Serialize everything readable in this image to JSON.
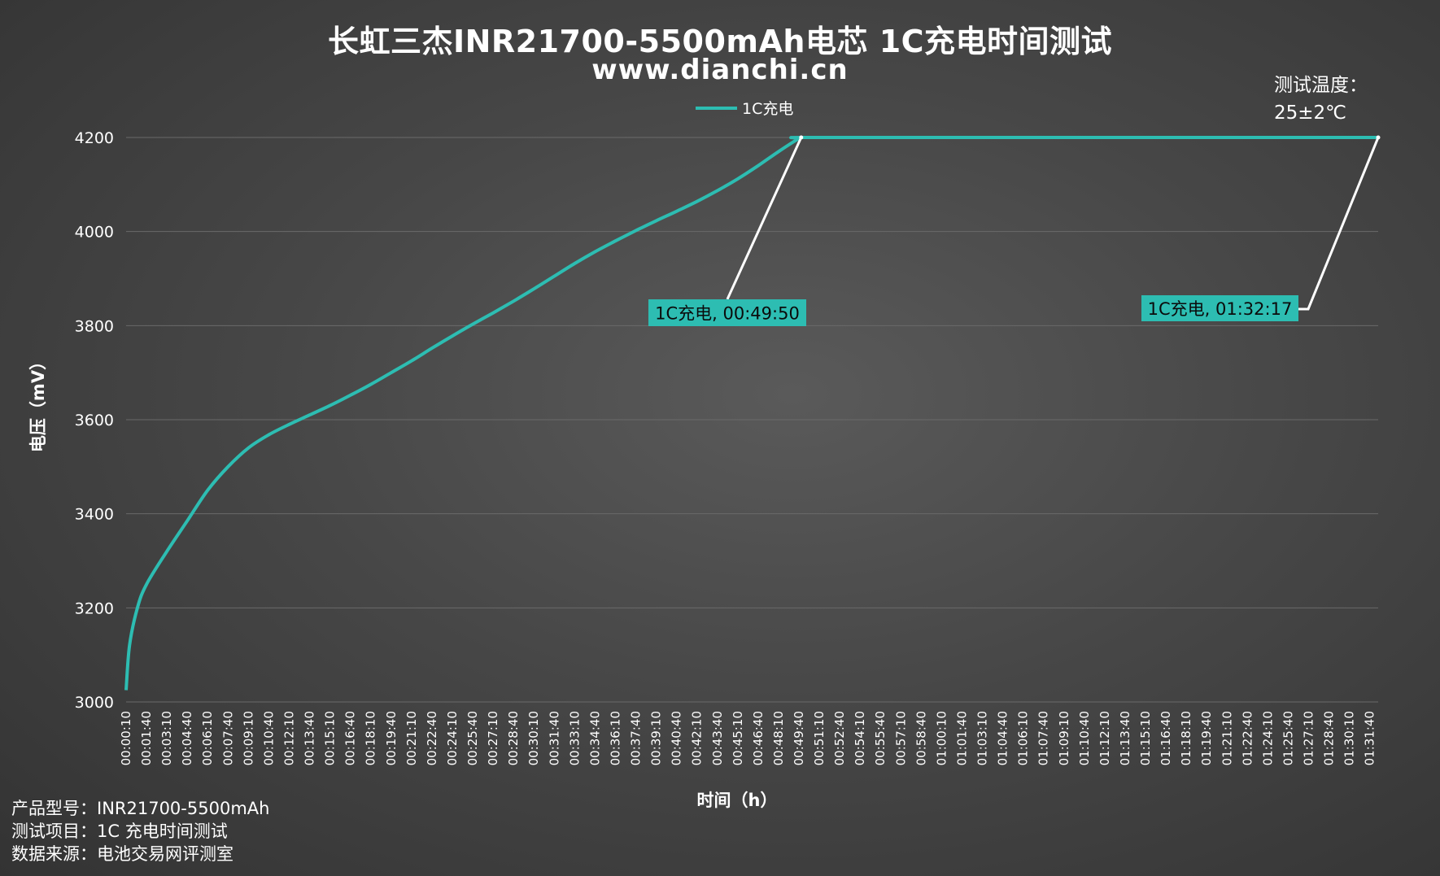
{
  "header": {
    "title": "长虹三杰INR21700-5500mAh电芯 1C充电时间测试",
    "subtitle": "www.dianchi.cn"
  },
  "note": {
    "line1": "测试温度：",
    "line2": "25±2℃"
  },
  "footer": {
    "line1": "产品型号：INR21700-5500mAh",
    "line2": "测试项目：1C 充电时间测试",
    "line3": "数据来源：电池交易网评测室"
  },
  "colors": {
    "series": "#2dbdb2",
    "grid": "#6a6a6a",
    "leader": "#ffffff"
  },
  "chart_data": {
    "type": "line",
    "title": "长虹三杰INR21700-5500mAh电芯 1C充电时间测试",
    "xlabel": "时间（h）",
    "ylabel": "电压（mV）",
    "ylim": [
      3000,
      4200
    ],
    "yticks": [
      3000,
      3200,
      3400,
      3600,
      3800,
      4000,
      4200
    ],
    "grid": true,
    "legend_position": "top-center",
    "x_tick_labels": [
      "00:00:10",
      "00:01:40",
      "00:03:10",
      "00:04:40",
      "00:06:10",
      "00:07:40",
      "00:09:10",
      "00:10:40",
      "00:12:10",
      "00:13:40",
      "00:15:10",
      "00:16:40",
      "00:18:10",
      "00:19:40",
      "00:21:10",
      "00:22:40",
      "00:24:10",
      "00:25:40",
      "00:27:10",
      "00:28:40",
      "00:30:10",
      "00:31:40",
      "00:33:10",
      "00:34:40",
      "00:36:10",
      "00:37:40",
      "00:39:10",
      "00:40:40",
      "00:42:10",
      "00:43:40",
      "00:45:10",
      "00:46:40",
      "00:48:10",
      "00:49:40",
      "00:51:10",
      "00:52:40",
      "00:54:10",
      "00:55:40",
      "00:57:10",
      "00:58:40",
      "01:00:10",
      "01:01:40",
      "01:03:10",
      "01:04:40",
      "01:06:10",
      "01:07:40",
      "01:09:10",
      "01:10:40",
      "01:12:10",
      "01:13:40",
      "01:15:10",
      "01:16:40",
      "01:18:10",
      "01:19:40",
      "01:21:10",
      "01:22:40",
      "01:24:10",
      "01:25:40",
      "01:27:10",
      "01:28:40",
      "01:30:10",
      "01:31:40"
    ],
    "series": [
      {
        "name": "1C充电",
        "x": [
          "00:00:10",
          "00:00:25",
          "00:01:00",
          "00:01:40",
          "00:03:10",
          "00:04:40",
          "00:06:10",
          "00:07:40",
          "00:09:10",
          "00:10:40",
          "00:12:10",
          "00:13:40",
          "00:15:10",
          "00:16:40",
          "00:18:10",
          "00:19:40",
          "00:21:10",
          "00:22:40",
          "00:24:10",
          "00:25:40",
          "00:27:10",
          "00:28:40",
          "00:30:10",
          "00:31:40",
          "00:33:10",
          "00:34:40",
          "00:36:10",
          "00:37:40",
          "00:39:10",
          "00:40:40",
          "00:42:10",
          "00:43:40",
          "00:45:10",
          "00:46:40",
          "00:48:10",
          "00:49:40",
          "00:49:50",
          "01:00:10",
          "01:15:10",
          "01:30:10",
          "01:32:17"
        ],
        "values": [
          3025,
          3120,
          3200,
          3250,
          3320,
          3385,
          3450,
          3500,
          3540,
          3568,
          3590,
          3610,
          3630,
          3652,
          3675,
          3700,
          3725,
          3752,
          3778,
          3803,
          3827,
          3852,
          3878,
          3905,
          3932,
          3957,
          3980,
          4002,
          4023,
          4043,
          4064,
          4087,
          4112,
          4140,
          4170,
          4198,
          4200,
          4200,
          4200,
          4200,
          4200
        ]
      }
    ],
    "annotations": [
      {
        "text": "1C充电, 00:49:50",
        "x": "00:49:50",
        "y": 4200
      },
      {
        "text": "1C充电, 01:32:17",
        "x": "01:32:17",
        "y": 4200
      }
    ]
  }
}
